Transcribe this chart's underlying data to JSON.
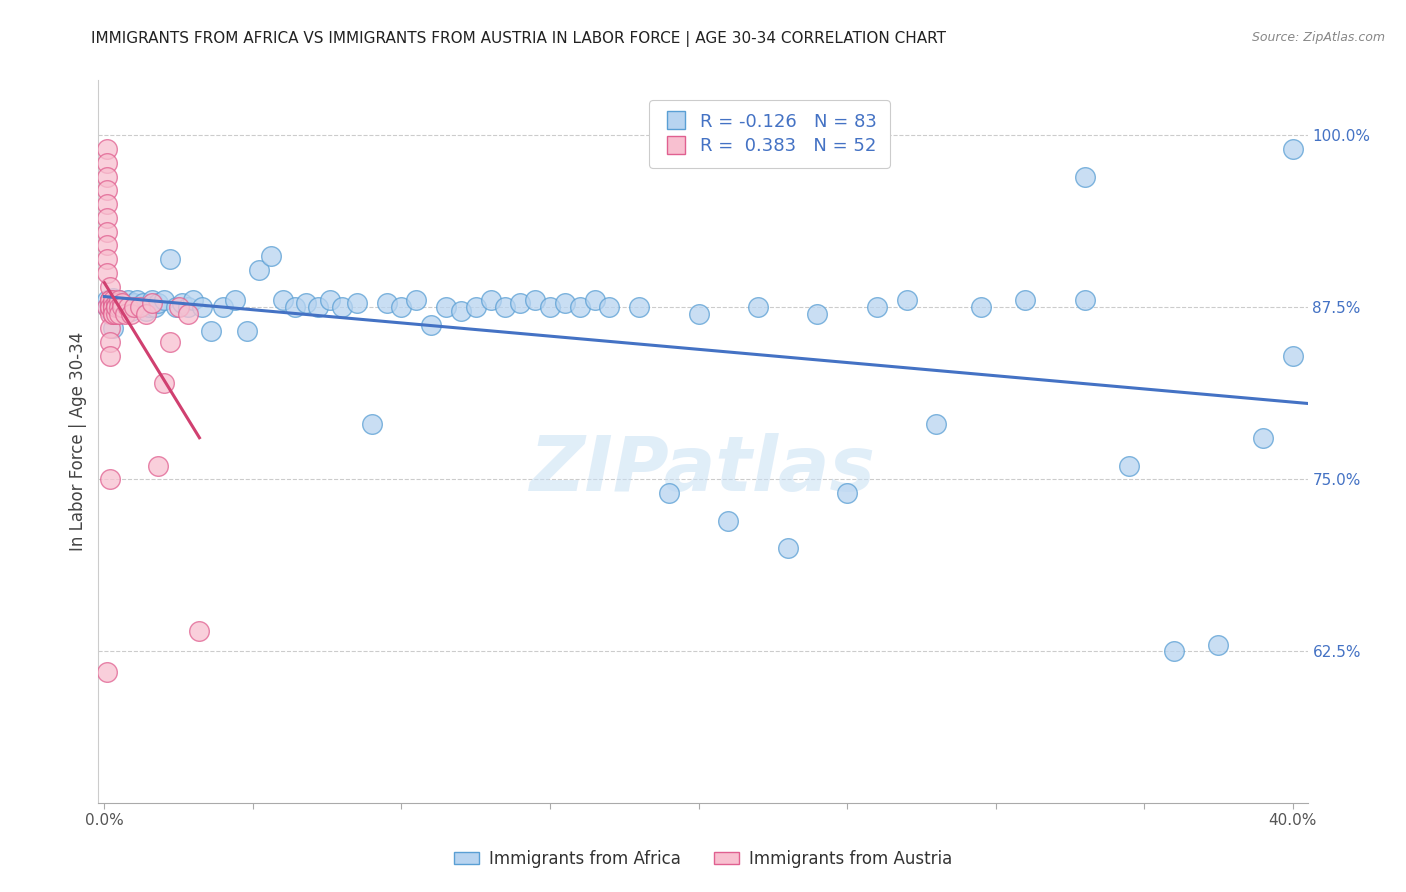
{
  "title": "IMMIGRANTS FROM AFRICA VS IMMIGRANTS FROM AUSTRIA IN LABOR FORCE | AGE 30-34 CORRELATION CHART",
  "source": "Source: ZipAtlas.com",
  "ylabel": "In Labor Force | Age 30-34",
  "y_ticks_right": [
    0.625,
    0.75,
    0.875,
    1.0
  ],
  "y_tick_labels_right": [
    "62.5%",
    "75.0%",
    "87.5%",
    "100.0%"
  ],
  "xlim": [
    -0.002,
    0.405
  ],
  "ylim": [
    0.515,
    1.04
  ],
  "africa_color": "#b8d4f0",
  "africa_edge": "#5a9fd4",
  "austria_color": "#f8c0d0",
  "austria_edge": "#e06090",
  "africa_R": -0.126,
  "africa_N": 83,
  "austria_R": 0.383,
  "austria_N": 52,
  "trend_africa_color": "#4472c4",
  "trend_austria_color": "#d04070",
  "watermark": "ZIPatlas",
  "legend_label_africa": "Immigrants from Africa",
  "legend_label_austria": "Immigrants from Austria",
  "africa_x": [
    0.001,
    0.001,
    0.002,
    0.002,
    0.003,
    0.003,
    0.004,
    0.004,
    0.005,
    0.005,
    0.006,
    0.007,
    0.008,
    0.009,
    0.01,
    0.01,
    0.011,
    0.012,
    0.013,
    0.014,
    0.015,
    0.016,
    0.017,
    0.018,
    0.02,
    0.022,
    0.024,
    0.026,
    0.028,
    0.03,
    0.033,
    0.036,
    0.04,
    0.044,
    0.048,
    0.052,
    0.056,
    0.06,
    0.064,
    0.068,
    0.072,
    0.076,
    0.08,
    0.085,
    0.09,
    0.095,
    0.1,
    0.105,
    0.11,
    0.115,
    0.12,
    0.125,
    0.13,
    0.135,
    0.14,
    0.145,
    0.15,
    0.155,
    0.16,
    0.165,
    0.17,
    0.18,
    0.19,
    0.2,
    0.21,
    0.22,
    0.23,
    0.24,
    0.25,
    0.26,
    0.27,
    0.28,
    0.295,
    0.31,
    0.33,
    0.345,
    0.36,
    0.375,
    0.39,
    0.4,
    0.4,
    0.33,
    0.003
  ],
  "africa_y": [
    0.875,
    0.88,
    0.872,
    0.88,
    0.875,
    0.882,
    0.875,
    0.878,
    0.88,
    0.872,
    0.878,
    0.875,
    0.88,
    0.872,
    0.878,
    0.875,
    0.88,
    0.875,
    0.878,
    0.872,
    0.875,
    0.88,
    0.875,
    0.878,
    0.88,
    0.91,
    0.875,
    0.878,
    0.875,
    0.88,
    0.875,
    0.858,
    0.875,
    0.88,
    0.858,
    0.902,
    0.912,
    0.88,
    0.875,
    0.878,
    0.875,
    0.88,
    0.875,
    0.878,
    0.79,
    0.878,
    0.875,
    0.88,
    0.862,
    0.875,
    0.872,
    0.875,
    0.88,
    0.875,
    0.878,
    0.88,
    0.875,
    0.878,
    0.875,
    0.88,
    0.875,
    0.875,
    0.74,
    0.87,
    0.72,
    0.875,
    0.7,
    0.87,
    0.74,
    0.875,
    0.88,
    0.79,
    0.875,
    0.88,
    0.97,
    0.76,
    0.625,
    0.63,
    0.78,
    0.84,
    0.99,
    0.88,
    0.86
  ],
  "austria_x": [
    0.001,
    0.001,
    0.001,
    0.001,
    0.001,
    0.001,
    0.001,
    0.001,
    0.001,
    0.001,
    0.001,
    0.002,
    0.002,
    0.002,
    0.002,
    0.002,
    0.002,
    0.002,
    0.002,
    0.002,
    0.002,
    0.003,
    0.003,
    0.003,
    0.003,
    0.003,
    0.003,
    0.003,
    0.004,
    0.004,
    0.004,
    0.004,
    0.005,
    0.005,
    0.005,
    0.006,
    0.006,
    0.007,
    0.008,
    0.009,
    0.01,
    0.012,
    0.014,
    0.016,
    0.018,
    0.02,
    0.022,
    0.025,
    0.028,
    0.032,
    0.001,
    0.002
  ],
  "austria_y": [
    0.99,
    0.98,
    0.97,
    0.96,
    0.95,
    0.94,
    0.93,
    0.92,
    0.91,
    0.9,
    0.875,
    0.89,
    0.88,
    0.875,
    0.87,
    0.86,
    0.85,
    0.84,
    0.875,
    0.88,
    0.875,
    0.878,
    0.875,
    0.87,
    0.875,
    0.88,
    0.875,
    0.87,
    0.878,
    0.875,
    0.87,
    0.875,
    0.88,
    0.875,
    0.87,
    0.878,
    0.875,
    0.87,
    0.875,
    0.87,
    0.875,
    0.875,
    0.87,
    0.878,
    0.76,
    0.82,
    0.85,
    0.875,
    0.87,
    0.64,
    0.61,
    0.75
  ]
}
